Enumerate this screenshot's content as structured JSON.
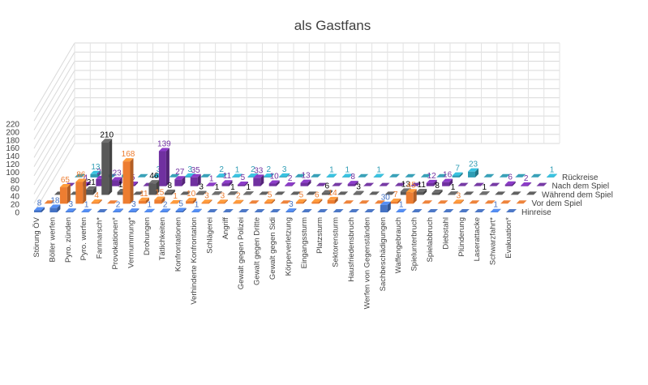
{
  "chart_data": {
    "type": "bar",
    "subtype": "3d-column",
    "title": "als Gastfans",
    "categories": [
      "Störung ÖV",
      "Böller werfen",
      "Pyro. zünden",
      "Pyro. werfen",
      "Fanmarsch*",
      "Provokationen*",
      "Vermummung*",
      "Drohungen",
      "Tätlichkeiten",
      "Konfrontationen",
      "Verhinderte Konfrontation",
      "Schlägerei",
      "Angriff",
      "Gewalt gegen Polizei",
      "Gewalt gegen Dritte",
      "Gewalt gegen Sidi",
      "Körperverletzung",
      "Eingangssturm",
      "Platzsturm",
      "Sektorensturm",
      "Hausfriedensbruch",
      "Werfen von Gegenständen",
      "Sachbeschädigungen",
      "Waffengebrauch",
      "Spielunterbruch",
      "Spielabbruch",
      "Diebstahl",
      "Plünderung",
      "Laserattacke",
      "Schwarzfahrt*",
      "Evakuation*"
    ],
    "series": [
      {
        "name": "Hinreise",
        "color": "#4472c4",
        "values": [
          8,
          18,
          3,
          1,
          0,
          2,
          3,
          1,
          2,
          5,
          1,
          0,
          0,
          0,
          0,
          0,
          3,
          0,
          0,
          0,
          0,
          0,
          30,
          1,
          0,
          0,
          0,
          0,
          0,
          1,
          0
        ]
      },
      {
        "name": "Vor dem Spiel",
        "color": "#ed7d31",
        "values": [
          0,
          65,
          86,
          4,
          0,
          168,
          11,
          15,
          1,
          10,
          3,
          3,
          2,
          0,
          5,
          0,
          5,
          6,
          14,
          0,
          0,
          0,
          7,
          45,
          0,
          0,
          3,
          0,
          0,
          0,
          0
        ]
      },
      {
        "name": "Während dem Spiel",
        "color": "#595959",
        "values": [
          0,
          0,
          21,
          210,
          11,
          0,
          46,
          8,
          0,
          3,
          1,
          1,
          1,
          0,
          0,
          0,
          0,
          6,
          0,
          3,
          0,
          0,
          13,
          11,
          8,
          1,
          0,
          1,
          0,
          0,
          0
        ]
      },
      {
        "name": "Nach dem Spiel",
        "color": "#7030a0",
        "values": [
          0,
          4,
          28,
          23,
          5,
          0,
          139,
          27,
          35,
          1,
          11,
          5,
          33,
          10,
          2,
          13,
          0,
          0,
          8,
          0,
          0,
          0,
          0,
          12,
          16,
          0,
          0,
          0,
          6,
          2,
          0
        ]
      },
      {
        "name": "Rückreise",
        "color": "#2e9cb4",
        "values": [
          0,
          13,
          0,
          9,
          0,
          3,
          0,
          3,
          0,
          2,
          1,
          2,
          2,
          3,
          0,
          0,
          1,
          1,
          0,
          1,
          0,
          0,
          0,
          0,
          7,
          23,
          0,
          0,
          0,
          0,
          1
        ]
      }
    ],
    "ylim": [
      0,
      220
    ],
    "yticks": [
      "0",
      "20",
      "40",
      "60",
      "80",
      "100",
      "120",
      "140",
      "160",
      "180",
      "200",
      "220"
    ],
    "legend": "series labels on right depth axis",
    "grid": true
  }
}
